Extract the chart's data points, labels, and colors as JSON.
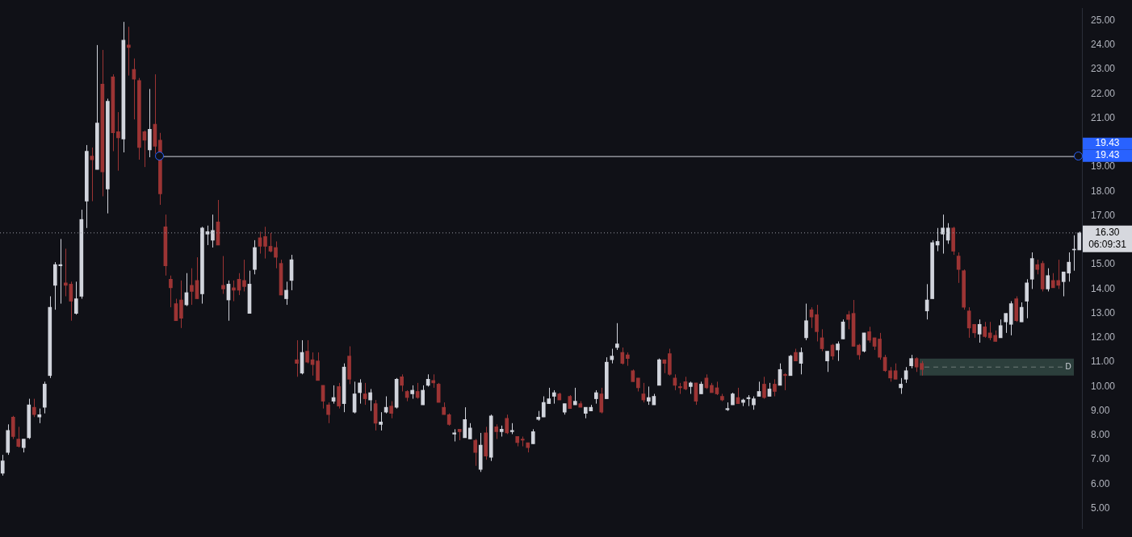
{
  "chart_data": {
    "type": "candlestick",
    "categories": [
      null,
      null,
      null,
      null,
      null,
      null,
      null,
      null,
      null,
      null,
      null,
      null,
      null,
      null,
      null,
      null,
      null,
      null,
      null,
      null,
      null,
      null,
      null,
      null,
      null,
      null,
      null,
      null,
      null,
      null,
      null,
      null,
      null,
      null,
      null,
      null,
      null,
      null,
      null,
      null,
      null,
      null,
      null,
      null,
      null,
      null,
      null,
      null,
      null,
      null,
      null,
      null,
      null,
      null,
      null,
      null,
      null,
      null,
      null,
      null,
      null,
      null,
      null,
      null,
      null,
      null,
      null,
      null,
      null,
      null,
      null,
      null,
      null,
      null,
      null,
      null,
      null,
      null,
      null,
      null,
      null,
      null,
      null,
      null,
      null,
      null,
      null,
      null,
      null,
      null,
      null,
      null,
      null,
      null,
      null,
      null,
      null,
      null,
      null,
      null,
      null,
      null,
      null,
      null,
      null,
      null,
      null,
      null,
      null,
      null,
      null,
      null,
      null,
      null,
      null,
      null,
      null,
      null,
      null,
      null,
      null,
      null,
      null,
      null,
      null,
      null,
      null,
      null,
      null,
      null,
      null,
      null,
      null,
      null,
      null,
      null,
      null,
      null,
      null,
      null,
      null,
      null,
      null,
      null,
      null,
      null,
      null,
      null,
      null,
      null,
      null,
      null,
      null,
      null,
      null,
      null,
      null,
      null,
      null,
      null,
      null,
      null,
      null,
      null,
      null,
      null,
      null,
      null,
      null,
      null,
      null,
      null,
      null,
      null,
      null,
      null,
      null,
      null,
      null,
      null,
      null,
      null,
      null,
      null,
      null,
      null,
      null,
      null,
      null,
      null,
      null,
      null,
      null,
      null,
      null,
      null,
      null,
      null,
      null,
      null,
      null,
      null,
      null,
      null,
      null,
      null
    ],
    "ohlc": [
      [
        6.45,
        7.2,
        6.35,
        6.95
      ],
      [
        7.3,
        8.45,
        7.2,
        8.2
      ],
      [
        8.75,
        8.8,
        7.85,
        7.95
      ],
      [
        7.85,
        8.35,
        7.5,
        7.55
      ],
      [
        7.5,
        7.85,
        7.3,
        7.85
      ],
      [
        7.9,
        9.5,
        7.85,
        9.25
      ],
      [
        9.15,
        9.5,
        8.75,
        8.85
      ],
      [
        8.75,
        9.1,
        8.5,
        8.85
      ],
      [
        9.15,
        10.2,
        8.9,
        10.1
      ],
      [
        10.45,
        13.7,
        10.35,
        13.25
      ],
      [
        14.15,
        15.1,
        13.15,
        15.0
      ],
      [
        14.95,
        16.05,
        13.4,
        15.0
      ],
      [
        14.25,
        15.65,
        13.7,
        14.15
      ],
      [
        14.2,
        14.3,
        12.7,
        13.5
      ],
      [
        13.0,
        14.3,
        12.95,
        13.6
      ],
      [
        13.7,
        17.25,
        13.6,
        16.85
      ],
      [
        17.6,
        19.9,
        16.5,
        19.65
      ],
      [
        19.45,
        19.8,
        17.6,
        19.3
      ],
      [
        18.9,
        24.0,
        18.9,
        20.8
      ],
      [
        22.4,
        23.8,
        17.8,
        18.8
      ],
      [
        18.1,
        21.8,
        17.1,
        21.7
      ],
      [
        22.7,
        22.8,
        19.65,
        20.4
      ],
      [
        20.45,
        21.25,
        18.85,
        20.2
      ],
      [
        20.15,
        24.95,
        19.6,
        24.2
      ],
      [
        24.0,
        24.75,
        22.75,
        23.9
      ],
      [
        23.0,
        23.45,
        20.95,
        22.6
      ],
      [
        22.55,
        22.65,
        19.3,
        19.8
      ],
      [
        20.45,
        20.5,
        19.0,
        20.1
      ],
      [
        19.7,
        22.2,
        19.4,
        20.55
      ],
      [
        20.75,
        22.8,
        19.55,
        19.85
      ],
      [
        20.1,
        20.4,
        17.45,
        17.9
      ],
      [
        16.55,
        17.05,
        14.55,
        14.95
      ],
      [
        14.4,
        14.55,
        13.25,
        14.05
      ],
      [
        13.4,
        13.6,
        12.7,
        12.7
      ],
      [
        13.55,
        14.35,
        12.4,
        12.8
      ],
      [
        13.35,
        14.65,
        13.3,
        13.85
      ],
      [
        14.15,
        14.85,
        13.35,
        13.9
      ],
      [
        14.35,
        15.3,
        13.6,
        13.6
      ],
      [
        13.8,
        16.55,
        13.4,
        16.5
      ],
      [
        16.25,
        16.6,
        15.8,
        16.35
      ],
      [
        16.0,
        17.05,
        15.7,
        16.4
      ],
      [
        16.75,
        17.65,
        15.8,
        15.8
      ],
      [
        14.15,
        15.35,
        13.8,
        14.0
      ],
      [
        13.55,
        14.35,
        12.7,
        14.2
      ],
      [
        14.05,
        14.35,
        13.5,
        13.95
      ],
      [
        14.4,
        14.65,
        13.75,
        13.95
      ],
      [
        14.35,
        15.2,
        13.9,
        14.1
      ],
      [
        13.0,
        14.75,
        13.0,
        14.2
      ],
      [
        14.8,
        16.0,
        14.6,
        15.7
      ],
      [
        16.1,
        16.35,
        15.45,
        15.75
      ],
      [
        16.15,
        16.55,
        15.25,
        15.75
      ],
      [
        15.75,
        16.3,
        15.5,
        15.55
      ],
      [
        15.7,
        15.95,
        14.85,
        15.3
      ],
      [
        15.05,
        15.2,
        13.75,
        13.75
      ],
      [
        13.6,
        14.3,
        13.35,
        13.95
      ],
      [
        14.35,
        15.4,
        13.95,
        15.2
      ],
      [
        11.1,
        11.9,
        10.4,
        10.95
      ],
      [
        10.55,
        11.9,
        10.5,
        11.4
      ],
      [
        11.45,
        11.9,
        10.95,
        11.0
      ],
      [
        11.1,
        11.4,
        10.45,
        10.9
      ],
      [
        11.05,
        11.4,
        10.25,
        10.25
      ],
      [
        10.05,
        10.05,
        9.1,
        9.4
      ],
      [
        9.25,
        9.35,
        8.5,
        8.85
      ],
      [
        9.4,
        10.05,
        9.3,
        9.55
      ],
      [
        10.0,
        10.15,
        9.1,
        9.2
      ],
      [
        9.3,
        10.95,
        8.95,
        10.8
      ],
      [
        11.25,
        11.65,
        10.1,
        10.3
      ],
      [
        8.95,
        10.2,
        8.9,
        9.7
      ],
      [
        9.75,
        10.3,
        9.3,
        10.15
      ],
      [
        9.7,
        10.15,
        9.25,
        9.5
      ],
      [
        9.45,
        9.9,
        9.0,
        9.75
      ],
      [
        9.3,
        9.45,
        8.2,
        8.5
      ],
      [
        8.45,
        8.95,
        8.2,
        8.55
      ],
      [
        8.95,
        9.6,
        8.9,
        9.15
      ],
      [
        9.2,
        9.4,
        8.7,
        8.9
      ],
      [
        9.15,
        10.35,
        9.1,
        10.3
      ],
      [
        10.4,
        10.5,
        9.8,
        10.05
      ],
      [
        9.8,
        9.85,
        9.4,
        9.55
      ],
      [
        9.7,
        10.05,
        9.5,
        9.85
      ],
      [
        9.8,
        10.15,
        9.5,
        9.55
      ],
      [
        9.25,
        10.05,
        9.25,
        9.85
      ],
      [
        10.05,
        10.5,
        10.0,
        10.3
      ],
      [
        10.25,
        10.5,
        9.95,
        10.15
      ],
      [
        10.1,
        10.15,
        9.35,
        9.35
      ],
      [
        9.15,
        9.35,
        8.85,
        8.85
      ],
      [
        8.85,
        8.9,
        8.4,
        8.45
      ],
      [
        8.05,
        8.25,
        7.75,
        8.1
      ],
      [
        8.25,
        8.25,
        7.8,
        8.15
      ],
      [
        7.9,
        9.15,
        7.9,
        8.65
      ],
      [
        7.85,
        8.5,
        7.85,
        8.3
      ],
      [
        7.8,
        7.85,
        6.75,
        7.3
      ],
      [
        6.6,
        8.1,
        6.5,
        7.6
      ],
      [
        8.1,
        8.35,
        7.0,
        7.15
      ],
      [
        7.1,
        8.85,
        6.95,
        8.8
      ],
      [
        8.35,
        8.45,
        7.85,
        8.15
      ],
      [
        8.15,
        8.4,
        7.95,
        8.25
      ],
      [
        8.7,
        8.85,
        8.05,
        8.1
      ],
      [
        8.15,
        8.5,
        8.05,
        8.2
      ],
      [
        7.95,
        7.95,
        7.55,
        7.7
      ],
      [
        7.85,
        7.95,
        7.55,
        7.8
      ],
      [
        7.7,
        7.7,
        7.3,
        7.5
      ],
      [
        7.65,
        8.25,
        7.65,
        8.15
      ],
      [
        8.65,
        9.0,
        8.6,
        8.75
      ],
      [
        8.75,
        9.6,
        8.75,
        9.35
      ],
      [
        9.3,
        9.95,
        9.3,
        9.5
      ],
      [
        9.6,
        9.85,
        9.3,
        9.75
      ],
      [
        9.7,
        9.75,
        9.45,
        9.45
      ],
      [
        8.95,
        9.3,
        8.85,
        9.3
      ],
      [
        9.6,
        9.65,
        9.1,
        9.1
      ],
      [
        9.25,
        9.95,
        9.25,
        9.4
      ],
      [
        9.3,
        9.4,
        9.15,
        9.15
      ],
      [
        8.9,
        9.15,
        8.7,
        9.15
      ],
      [
        9.0,
        9.25,
        9.0,
        9.15
      ],
      [
        9.5,
        9.85,
        9.3,
        9.75
      ],
      [
        9.7,
        9.95,
        8.9,
        8.95
      ],
      [
        9.5,
        11.2,
        9.5,
        11.0
      ],
      [
        11.1,
        11.55,
        10.95,
        11.25
      ],
      [
        11.6,
        12.6,
        11.5,
        11.75
      ],
      [
        11.4,
        11.6,
        10.9,
        10.95
      ],
      [
        11.3,
        11.4,
        10.85,
        11.15
      ],
      [
        10.65,
        10.7,
        10.2,
        10.2
      ],
      [
        10.35,
        10.35,
        9.8,
        9.95
      ],
      [
        9.7,
        10.15,
        9.35,
        9.45
      ],
      [
        9.4,
        10.0,
        9.25,
        9.55
      ],
      [
        9.25,
        9.7,
        9.25,
        9.6
      ],
      [
        10.05,
        11.15,
        10.05,
        11.1
      ],
      [
        11.1,
        11.1,
        10.55,
        10.95
      ],
      [
        11.35,
        11.55,
        10.45,
        10.5
      ],
      [
        10.35,
        10.5,
        9.85,
        10.05
      ],
      [
        10.0,
        10.15,
        9.7,
        9.95
      ],
      [
        10.2,
        10.4,
        9.85,
        9.9
      ],
      [
        10.0,
        10.2,
        9.7,
        10.15
      ],
      [
        10.15,
        10.15,
        9.25,
        9.4
      ],
      [
        9.7,
        10.2,
        9.7,
        10.1
      ],
      [
        10.35,
        10.5,
        9.9,
        9.95
      ],
      [
        10.05,
        10.15,
        9.75,
        9.75
      ],
      [
        9.95,
        10.2,
        9.65,
        9.7
      ],
      [
        9.6,
        9.7,
        9.4,
        9.45
      ],
      [
        9.05,
        9.35,
        9.0,
        9.1
      ],
      [
        9.25,
        9.75,
        9.25,
        9.7
      ],
      [
        9.55,
        9.95,
        9.3,
        9.3
      ],
      [
        9.35,
        9.5,
        9.2,
        9.45
      ],
      [
        9.5,
        9.65,
        9.2,
        9.55
      ],
      [
        9.25,
        9.6,
        9.05,
        9.5
      ],
      [
        9.6,
        10.2,
        9.6,
        9.8
      ],
      [
        10.1,
        10.4,
        9.5,
        9.55
      ],
      [
        9.6,
        10.15,
        9.6,
        9.9
      ],
      [
        10.1,
        10.3,
        9.6,
        9.8
      ],
      [
        10.05,
        10.95,
        10.05,
        10.7
      ],
      [
        10.5,
        10.55,
        9.85,
        10.45
      ],
      [
        10.45,
        11.3,
        10.45,
        11.25
      ],
      [
        11.4,
        11.55,
        11.05,
        11.05
      ],
      [
        10.95,
        11.6,
        10.5,
        11.4
      ],
      [
        12.0,
        13.4,
        11.9,
        12.7
      ],
      [
        13.15,
        13.25,
        12.4,
        12.85
      ],
      [
        12.95,
        13.35,
        11.85,
        12.25
      ],
      [
        12.0,
        12.35,
        11.45,
        11.55
      ],
      [
        11.05,
        11.45,
        10.6,
        11.45
      ],
      [
        11.7,
        11.75,
        11.1,
        11.25
      ],
      [
        11.5,
        11.85,
        11.05,
        11.75
      ],
      [
        11.95,
        12.75,
        11.95,
        12.65
      ],
      [
        12.95,
        13.1,
        12.35,
        12.75
      ],
      [
        13.0,
        13.55,
        11.65,
        11.65
      ],
      [
        11.7,
        11.75,
        11.1,
        11.3
      ],
      [
        11.45,
        12.2,
        11.4,
        12.2
      ],
      [
        12.25,
        12.45,
        11.8,
        11.9
      ],
      [
        12.0,
        12.0,
        11.5,
        11.65
      ],
      [
        11.95,
        12.2,
        11.1,
        11.2
      ],
      [
        11.2,
        11.3,
        10.6,
        10.65
      ],
      [
        10.65,
        10.8,
        10.2,
        10.35
      ],
      [
        10.65,
        10.95,
        10.3,
        10.3
      ],
      [
        9.95,
        10.35,
        9.7,
        10.1
      ],
      [
        10.3,
        10.8,
        10.15,
        10.65
      ],
      [
        10.85,
        11.3,
        10.75,
        11.15
      ],
      [
        11.15,
        11.2,
        10.6,
        10.8
      ],
      [
        10.95,
        11.05,
        10.45,
        10.7
      ],
      [
        13.1,
        14.2,
        12.75,
        13.55
      ],
      [
        13.6,
        16.0,
        13.6,
        15.9
      ],
      [
        15.8,
        16.5,
        15.55,
        15.95
      ],
      [
        16.25,
        17.05,
        15.45,
        16.5
      ],
      [
        16.0,
        16.7,
        15.85,
        16.5
      ],
      [
        16.5,
        16.55,
        15.4,
        15.55
      ],
      [
        15.35,
        15.5,
        14.25,
        14.8
      ],
      [
        14.75,
        14.8,
        13.15,
        13.25
      ],
      [
        13.1,
        13.25,
        12.0,
        12.4
      ],
      [
        12.55,
        12.55,
        12.0,
        12.2
      ],
      [
        12.15,
        12.75,
        11.8,
        12.55
      ],
      [
        12.45,
        12.65,
        12.0,
        12.05
      ],
      [
        12.2,
        12.65,
        11.9,
        12.0
      ],
      [
        12.1,
        12.3,
        11.85,
        11.85
      ],
      [
        12.0,
        12.75,
        12.0,
        12.5
      ],
      [
        12.65,
        13.0,
        12.2,
        13.0
      ],
      [
        12.55,
        13.5,
        12.1,
        13.4
      ],
      [
        13.6,
        13.7,
        12.65,
        12.7
      ],
      [
        12.65,
        13.45,
        12.65,
        13.25
      ],
      [
        13.5,
        14.4,
        12.8,
        14.25
      ],
      [
        14.4,
        15.5,
        14.0,
        15.25
      ],
      [
        15.0,
        15.2,
        14.6,
        14.8
      ],
      [
        15.05,
        15.15,
        13.9,
        14.0
      ],
      [
        14.0,
        14.85,
        13.9,
        14.55
      ],
      [
        14.35,
        14.65,
        14.05,
        14.05
      ],
      [
        14.35,
        15.2,
        14.0,
        14.15
      ],
      [
        14.3,
        14.7,
        13.7,
        14.7
      ],
      [
        14.65,
        15.5,
        14.3,
        15.1
      ],
      [
        15.6,
        16.2,
        14.75,
        15.6
      ],
      [
        15.6,
        16.35,
        15.6,
        16.3
      ]
    ],
    "colors": [
      "#d1d4dc",
      "#d1d4dc",
      "#9c3434",
      "#9c3434",
      "#d1d4dc",
      "#d1d4dc",
      "#9c3434",
      "#d1d4dc",
      "#d1d4dc",
      "#d1d4dc",
      "#d1d4dc",
      "#d1d4dc",
      "#9c3434",
      "#9c3434",
      "#d1d4dc",
      "#d1d4dc",
      "#d1d4dc",
      "#9c3434",
      "#d1d4dc",
      "#9c3434",
      "#d1d4dc",
      "#9c3434",
      "#9c3434",
      "#d1d4dc",
      "#9c3434",
      "#9c3434",
      "#9c3434",
      "#9c3434",
      "#d1d4dc",
      "#9c3434",
      "#9c3434",
      "#9c3434",
      "#9c3434",
      "#9c3434",
      "#9c3434",
      "#d1d4dc",
      "#9c3434",
      "#9c3434",
      "#d1d4dc",
      "#d1d4dc",
      "#d1d4dc",
      "#9c3434",
      "#9c3434",
      "#d1d4dc",
      "#9c3434",
      "#9c3434",
      "#9c3434",
      "#d1d4dc",
      "#d1d4dc",
      "#9c3434",
      "#9c3434",
      "#9c3434",
      "#9c3434",
      "#9c3434",
      "#d1d4dc",
      "#d1d4dc",
      "#9c3434",
      "#d1d4dc",
      "#9c3434",
      "#9c3434",
      "#9c3434",
      "#9c3434",
      "#9c3434",
      "#d1d4dc",
      "#9c3434",
      "#d1d4dc",
      "#9c3434",
      "#d1d4dc",
      "#d1d4dc",
      "#9c3434",
      "#d1d4dc",
      "#9c3434",
      "#d1d4dc",
      "#d1d4dc",
      "#9c3434",
      "#d1d4dc",
      "#9c3434",
      "#9c3434",
      "#d1d4dc",
      "#9c3434",
      "#d1d4dc",
      "#d1d4dc",
      "#9c3434",
      "#9c3434",
      "#9c3434",
      "#9c3434",
      "#d1d4dc",
      "#9c3434",
      "#d1d4dc",
      "#d1d4dc",
      "#9c3434",
      "#d1d4dc",
      "#9c3434",
      "#d1d4dc",
      "#9c3434",
      "#d1d4dc",
      "#9c3434",
      "#d1d4dc",
      "#9c3434",
      "#9c3434",
      "#9c3434",
      "#d1d4dc",
      "#d1d4dc",
      "#d1d4dc",
      "#d1d4dc",
      "#d1d4dc",
      "#9c3434",
      "#d1d4dc",
      "#9c3434",
      "#d1d4dc",
      "#9c3434",
      "#d1d4dc",
      "#d1d4dc",
      "#d1d4dc",
      "#9c3434",
      "#d1d4dc",
      "#d1d4dc",
      "#d1d4dc",
      "#9c3434",
      "#9c3434",
      "#9c3434",
      "#9c3434",
      "#9c3434",
      "#d1d4dc",
      "#d1d4dc",
      "#d1d4dc",
      "#9c3434",
      "#9c3434",
      "#9c3434",
      "#9c3434",
      "#9c3434",
      "#d1d4dc",
      "#9c3434",
      "#d1d4dc",
      "#9c3434",
      "#9c3434",
      "#9c3434",
      "#9c3434",
      "#d1d4dc",
      "#d1d4dc",
      "#9c3434",
      "#d1d4dc",
      "#d1d4dc",
      "#d1d4dc",
      "#d1d4dc",
      "#9c3434",
      "#d1d4dc",
      "#9c3434",
      "#d1d4dc",
      "#9c3434",
      "#d1d4dc",
      "#9c3434",
      "#d1d4dc",
      "#d1d4dc",
      "#9c3434",
      "#9c3434",
      "#9c3434",
      "#d1d4dc",
      "#9c3434",
      "#d1d4dc",
      "#d1d4dc",
      "#9c3434",
      "#9c3434",
      "#9c3434",
      "#d1d4dc",
      "#9c3434",
      "#9c3434",
      "#9c3434",
      "#9c3434",
      "#9c3434",
      "#9c3434",
      "#d1d4dc",
      "#d1d4dc",
      "#d1d4dc",
      "#9c3434",
      "#9c3434",
      "#d1d4dc",
      "#d1d4dc",
      "#d1d4dc",
      "#d1d4dc",
      "#d1d4dc",
      "#9c3434",
      "#9c3434",
      "#9c3434",
      "#9c3434",
      "#9c3434",
      "#d1d4dc",
      "#9c3434",
      "#9c3434",
      "#9c3434",
      "#d1d4dc",
      "#d1d4dc",
      "#d1d4dc",
      "#9c3434",
      "#d1d4dc",
      "#d1d4dc",
      "#d1d4dc",
      "#9c3434",
      "#9c3434",
      "#d1d4dc",
      "#9c3434",
      "#9c3434",
      "#d1d4dc",
      "#d1d4dc",
      "#d1d4dc",
      "#d1d4dc"
    ],
    "ylim": [
      4.17,
      25.51
    ],
    "yticks": [
      {
        "value": 5,
        "label": "5.00"
      },
      {
        "value": 6,
        "label": "6.00"
      },
      {
        "value": 7,
        "label": "7.00"
      },
      {
        "value": 8,
        "label": "8.00"
      },
      {
        "value": 9,
        "label": "9.00"
      },
      {
        "value": 10,
        "label": "10.00"
      },
      {
        "value": 11,
        "label": "11.00"
      },
      {
        "value": 12,
        "label": "12.00"
      },
      {
        "value": 13,
        "label": "13.00"
      },
      {
        "value": 14,
        "label": "14.00"
      },
      {
        "value": 15,
        "label": "15.00"
      },
      {
        "value": 17,
        "label": "17.00"
      },
      {
        "value": 18,
        "label": "18.00"
      },
      {
        "value": 19,
        "label": "19.00"
      },
      {
        "value": 21,
        "label": "21.00"
      },
      {
        "value": 22,
        "label": "22.00"
      },
      {
        "value": 23,
        "label": "23.00"
      },
      {
        "value": 24,
        "label": "24.00"
      },
      {
        "value": 25,
        "label": "25.00"
      }
    ],
    "tick_labels": "y",
    "ref_lines": [
      {
        "axis": "y",
        "value": 19.43,
        "label": "19.43",
        "color": "#d1d4dc",
        "line_style": "solid"
      },
      {
        "axis": "y",
        "value": 16.3,
        "label": "16.30",
        "color": "#9598a1",
        "line_style": "dotted"
      }
    ],
    "bands": [
      {
        "axis": "y",
        "from": 10.45,
        "to": 11.15,
        "label": "D",
        "color": "#2c3f3c"
      }
    ],
    "annotations": [
      "06:09:31"
    ]
  }
}
